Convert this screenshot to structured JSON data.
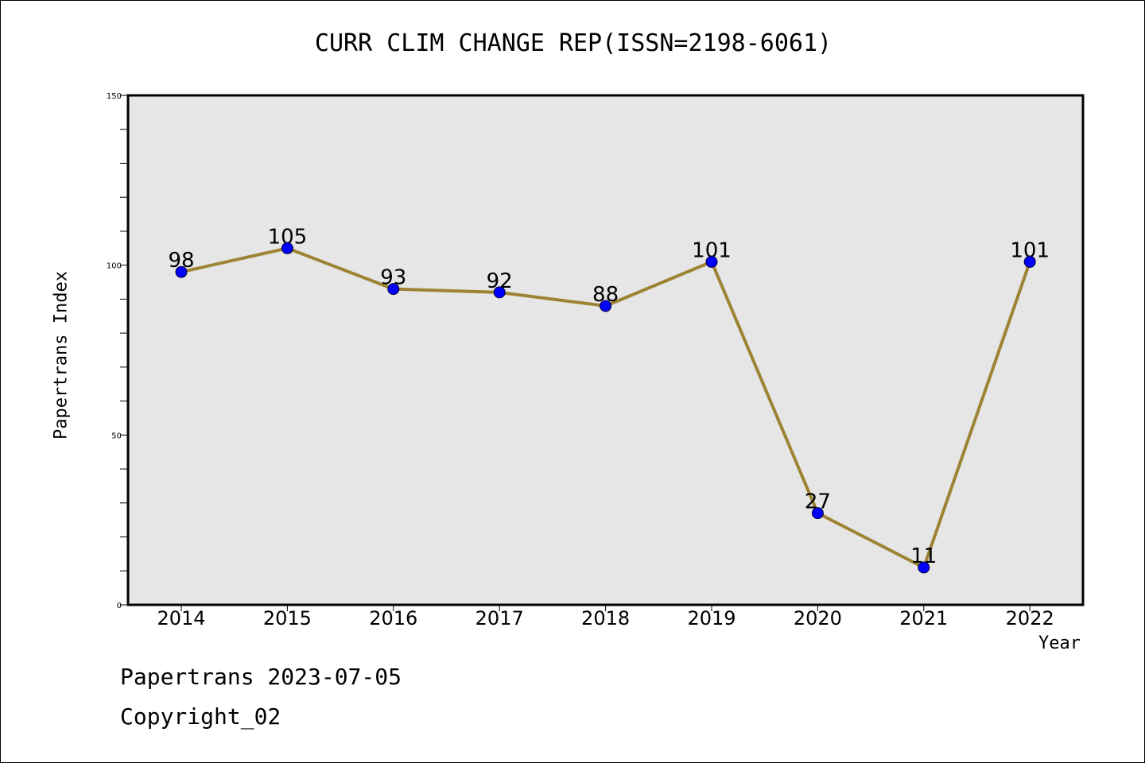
{
  "chart_data": {
    "type": "line",
    "title": "CURR CLIM CHANGE REP(ISSN=2198-6061)",
    "xlabel": "Year",
    "ylabel": "Papertrans Index",
    "categories": [
      "2014",
      "2015",
      "2016",
      "2017",
      "2018",
      "2019",
      "2020",
      "2021",
      "2022"
    ],
    "series": [
      {
        "values": [
          98,
          105,
          93,
          92,
          88,
          101,
          27,
          11,
          101
        ]
      }
    ],
    "data_labels": [
      "98",
      "105",
      "93",
      "92",
      "88",
      "101",
      "27",
      "11",
      "101"
    ],
    "ylim": [
      0,
      150
    ],
    "yticks": [
      0,
      50,
      100,
      150
    ],
    "grid": false,
    "colors": {
      "plot_background": "#e6e6e6",
      "line": "#9c8434",
      "marker": "#0000ff"
    }
  },
  "footer": {
    "line1": "Papertrans 2023-07-05",
    "line2": "Copyright_02"
  }
}
